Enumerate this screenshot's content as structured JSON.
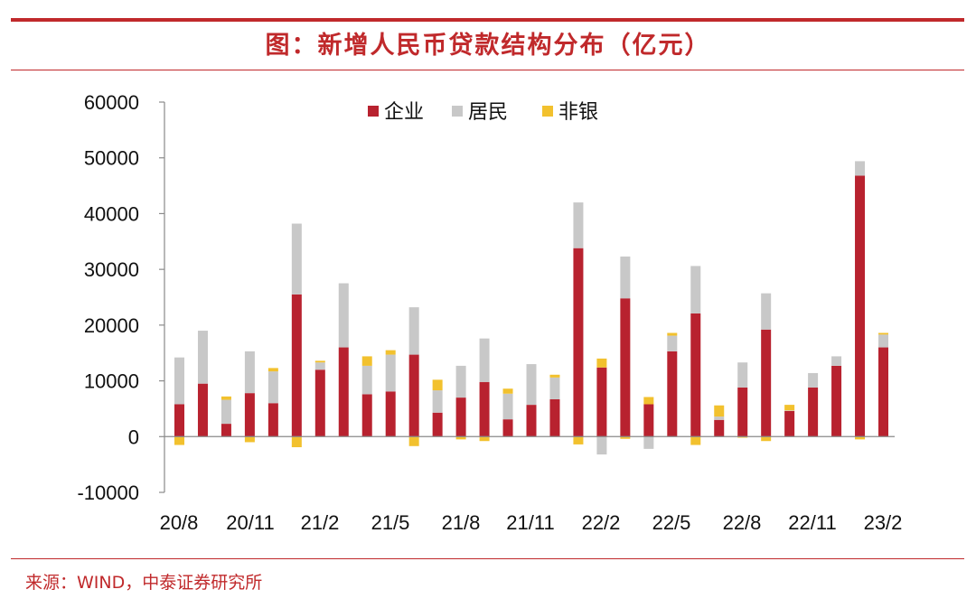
{
  "header": {
    "title": "图：新增人民币贷款结构分布（亿元）"
  },
  "footer": {
    "source": "来源：WIND，中泰证券研究所"
  },
  "colors": {
    "brand": "#c0292b",
    "corporate": "#b8222f",
    "household": "#c8c8c8",
    "nonbank": "#f2c12e"
  },
  "chart_data": {
    "type": "bar",
    "stacked": true,
    "title": "图：新增人民币贷款结构分布（亿元）",
    "ylim": [
      -10000,
      60000
    ],
    "yticks": [
      -10000,
      0,
      10000,
      20000,
      30000,
      40000,
      50000,
      60000
    ],
    "grid": false,
    "legend_position": "top-center",
    "x_tick_labels": [
      "20/8",
      "20/11",
      "21/2",
      "21/5",
      "21/8",
      "21/11",
      "22/2",
      "22/5",
      "22/8",
      "22/11",
      "23/2"
    ],
    "categories": [
      "20/8",
      "20/9",
      "20/10",
      "20/11",
      "20/12",
      "21/1",
      "21/2",
      "21/3",
      "21/4",
      "21/5",
      "21/6",
      "21/7",
      "21/8",
      "21/9",
      "21/10",
      "21/11",
      "21/12",
      "22/1",
      "22/2",
      "22/3",
      "22/4",
      "22/5",
      "22/6",
      "22/7",
      "22/8",
      "22/9",
      "22/10",
      "22/11",
      "22/12",
      "23/1",
      "23/2"
    ],
    "series": [
      {
        "name": "企业",
        "values": [
          5800,
          9500,
          2300,
          7800,
          6000,
          25500,
          12000,
          16000,
          7600,
          8100,
          14700,
          4300,
          7000,
          9800,
          3100,
          5700,
          6700,
          33800,
          12400,
          24800,
          5800,
          15300,
          22100,
          3000,
          8800,
          19200,
          4600,
          8800,
          12700,
          46800,
          16000
        ]
      },
      {
        "name": "居民",
        "values": [
          8400,
          9500,
          4300,
          7500,
          5700,
          12700,
          1300,
          11500,
          5100,
          6600,
          8500,
          4000,
          5700,
          7800,
          4600,
          7300,
          3900,
          8200,
          -3200,
          7500,
          -2200,
          2800,
          8500,
          600,
          4500,
          6500,
          100,
          2600,
          1700,
          2600,
          2300
        ]
      },
      {
        "name": "非银",
        "values": [
          -1500,
          0,
          600,
          -1000,
          600,
          -1900,
          300,
          0,
          1700,
          800,
          -1700,
          1900,
          -500,
          -800,
          900,
          0,
          500,
          -1400,
          1600,
          -400,
          1300,
          500,
          -1500,
          2000,
          -200,
          -800,
          1000,
          0,
          0,
          -500,
          300
        ]
      }
    ]
  }
}
